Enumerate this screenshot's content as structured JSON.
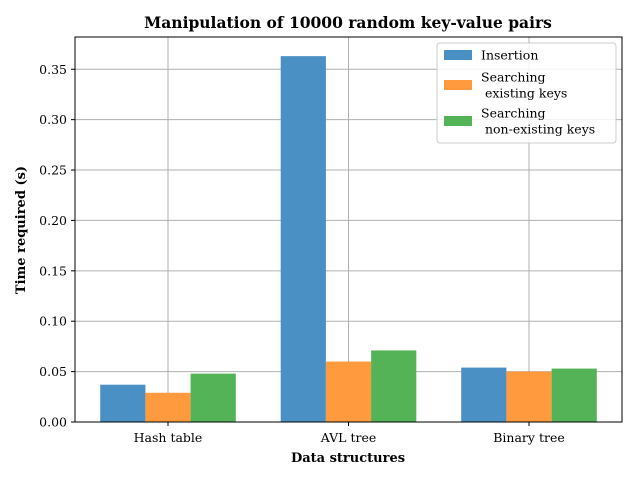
{
  "chart_data": {
    "type": "bar",
    "title": "Manipulation of 10000 random key-value pairs",
    "xlabel": "Data structures",
    "ylabel": "Time required (s)",
    "categories": [
      "Hash table",
      "AVL tree",
      "Binary tree"
    ],
    "series": [
      {
        "name": "Insertion",
        "values": [
          0.037,
          0.363,
          0.054
        ],
        "color": "#4a90c4"
      },
      {
        "name": "Searching\n existing keys",
        "values": [
          0.029,
          0.06,
          0.05
        ],
        "color": "#ff9a3f"
      },
      {
        "name": "Searching\n non-existing keys",
        "values": [
          0.048,
          0.071,
          0.053
        ],
        "color": "#53b356"
      }
    ],
    "ylim": [
      0,
      0.382
    ],
    "yticks": [
      "0.00",
      "0.05",
      "0.10",
      "0.15",
      "0.20",
      "0.25",
      "0.30",
      "0.35"
    ],
    "grid": true,
    "legend_position": "top-right"
  }
}
